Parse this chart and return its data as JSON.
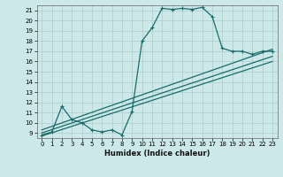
{
  "title": "",
  "xlabel": "Humidex (Indice chaleur)",
  "ylabel": "",
  "bg_color": "#cce8e8",
  "grid_color": "#aacccc",
  "line_color": "#1a6b6b",
  "xlim": [
    -0.5,
    23.5
  ],
  "ylim": [
    8.5,
    21.5
  ],
  "xticks": [
    0,
    1,
    2,
    3,
    4,
    5,
    6,
    7,
    8,
    9,
    10,
    11,
    12,
    13,
    14,
    15,
    16,
    17,
    18,
    19,
    20,
    21,
    22,
    23
  ],
  "yticks": [
    9,
    10,
    11,
    12,
    13,
    14,
    15,
    16,
    17,
    18,
    19,
    20,
    21
  ],
  "line1_x": [
    0,
    1,
    2,
    3,
    4,
    5,
    6,
    7,
    8,
    9,
    10,
    11,
    12,
    13,
    14,
    15,
    16,
    17,
    18,
    19,
    20,
    21,
    22,
    23
  ],
  "line1_y": [
    8.8,
    9.1,
    11.6,
    10.3,
    10.0,
    9.3,
    9.1,
    9.3,
    8.8,
    11.1,
    18.0,
    19.3,
    21.2,
    21.1,
    21.2,
    21.1,
    21.3,
    20.4,
    17.3,
    17.0,
    17.0,
    16.7,
    17.0,
    17.0
  ],
  "line2_x": [
    0,
    23
  ],
  "line2_y": [
    9.3,
    17.2
  ],
  "line3_x": [
    0,
    23
  ],
  "line3_y": [
    9.0,
    16.5
  ],
  "line4_x": [
    0,
    23
  ],
  "line4_y": [
    8.7,
    16.0
  ]
}
